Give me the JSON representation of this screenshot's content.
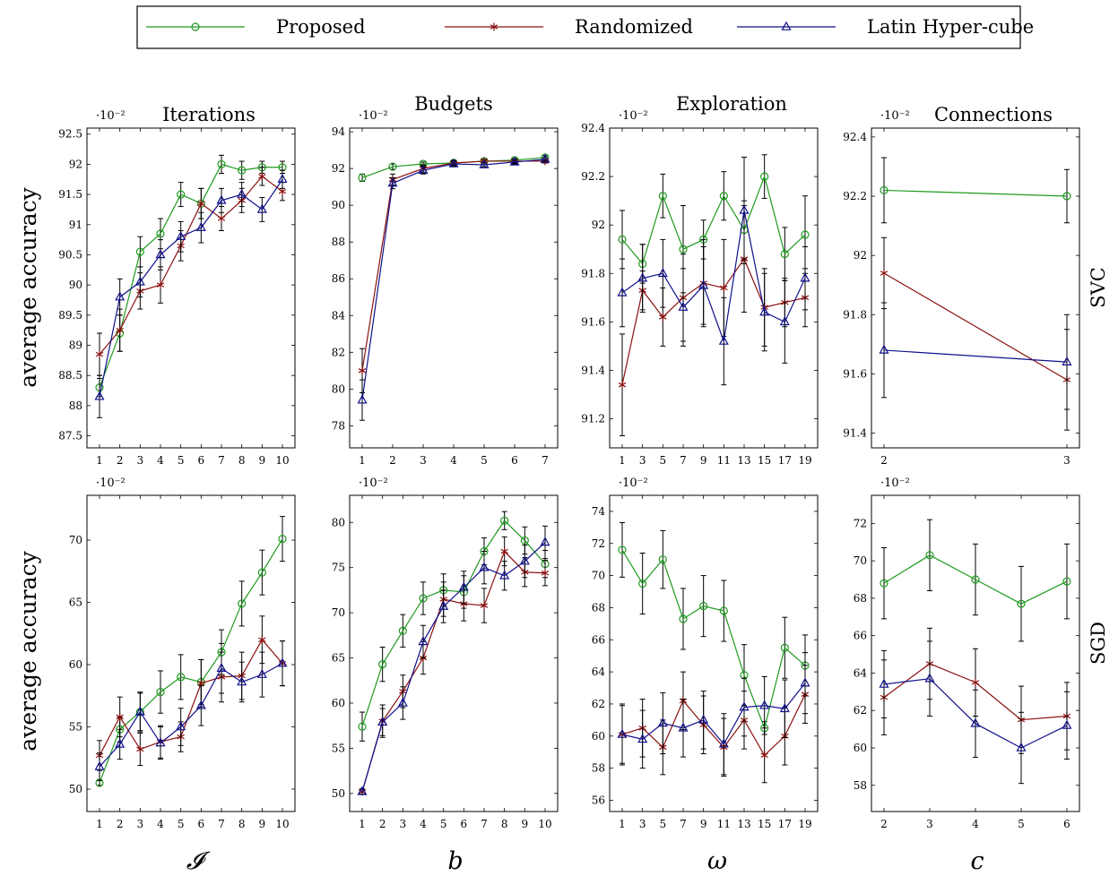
{
  "legend": {
    "entries": [
      {
        "name": "Proposed",
        "color": "#1f9a1f",
        "marker": "circle"
      },
      {
        "name": "Randomized",
        "color": "#8b1010",
        "marker": "star"
      },
      {
        "name": "Latin Hyper-cube",
        "color": "#10108b",
        "marker": "triangle"
      }
    ]
  },
  "row_labels": [
    "SVC",
    "SGD"
  ],
  "y_label": "average accuracy",
  "x_labels": [
    "𝓘",
    "b",
    "ω",
    "c"
  ],
  "chart_data": [
    {
      "type": "line",
      "title": "Iterations",
      "row": "SVC",
      "exponent": "·10⁻²",
      "x": [
        1,
        2,
        3,
        4,
        5,
        6,
        7,
        8,
        9,
        10
      ],
      "xticks": [
        "1",
        "2",
        "3",
        "4",
        "5",
        "6",
        "7",
        "8",
        "9",
        "10"
      ],
      "ylim": [
        87.3,
        92.6
      ],
      "yticks": [
        "87.5",
        "88",
        "88.5",
        "89",
        "89.5",
        "90",
        "90.5",
        "91",
        "91.5",
        "92",
        "92.5"
      ],
      "ytick_values": [
        87.5,
        88,
        88.5,
        89,
        89.5,
        90,
        90.5,
        91,
        91.5,
        92,
        92.5
      ],
      "series": [
        {
          "name": "Proposed",
          "values": [
            88.3,
            89.2,
            90.55,
            90.85,
            91.5,
            91.35,
            92.0,
            91.9,
            91.95,
            91.95
          ],
          "err": [
            0.15,
            0.3,
            0.25,
            0.25,
            0.2,
            0.25,
            0.15,
            0.15,
            0.1,
            0.1
          ]
        },
        {
          "name": "Randomized",
          "values": [
            88.85,
            89.25,
            89.9,
            90.0,
            90.65,
            91.35,
            91.1,
            91.4,
            91.8,
            91.55
          ],
          "err": [
            0.35,
            0.35,
            0.3,
            0.3,
            0.25,
            0.25,
            0.2,
            0.2,
            0.15,
            0.15
          ]
        },
        {
          "name": "Latin Hyper-cube",
          "values": [
            88.15,
            89.8,
            90.05,
            90.5,
            90.8,
            90.95,
            91.4,
            91.5,
            91.25,
            91.75
          ],
          "err": [
            0.35,
            0.3,
            0.25,
            0.25,
            0.25,
            0.25,
            0.2,
            0.2,
            0.2,
            0.15
          ]
        }
      ]
    },
    {
      "type": "line",
      "title": "Budgets",
      "row": "SVC",
      "exponent": "·10⁻²",
      "x": [
        1,
        2,
        3,
        4,
        5,
        6,
        7
      ],
      "xticks": [
        "1",
        "2",
        "3",
        "4",
        "5",
        "6",
        "7"
      ],
      "ylim": [
        76.8,
        94.2
      ],
      "yticks": [
        "78",
        "80",
        "82",
        "84",
        "86",
        "88",
        "90",
        "92",
        "94"
      ],
      "ytick_values": [
        78,
        80,
        82,
        84,
        86,
        88,
        90,
        92,
        94
      ],
      "series": [
        {
          "name": "Proposed",
          "values": [
            91.5,
            92.1,
            92.25,
            92.3,
            92.4,
            92.45,
            92.6
          ],
          "err": [
            0.2,
            0.15,
            0.1,
            0.1,
            0.1,
            0.1,
            0.1
          ]
        },
        {
          "name": "Randomized",
          "values": [
            81.0,
            91.4,
            92.0,
            92.3,
            92.4,
            92.4,
            92.4
          ],
          "err": [
            1.2,
            0.3,
            0.2,
            0.15,
            0.1,
            0.1,
            0.1
          ]
        },
        {
          "name": "Latin Hyper-cube",
          "values": [
            79.4,
            91.2,
            91.9,
            92.25,
            92.2,
            92.35,
            92.5
          ],
          "err": [
            1.1,
            0.3,
            0.2,
            0.15,
            0.1,
            0.1,
            0.1
          ]
        }
      ]
    },
    {
      "type": "line",
      "title": "Exploration",
      "row": "SVC",
      "exponent": "·10⁻²",
      "x": [
        1,
        3,
        5,
        7,
        9,
        11,
        13,
        15,
        17,
        19
      ],
      "xticks": [
        "1",
        "3",
        "5",
        "7",
        "9",
        "11",
        "13",
        "15",
        "17",
        "19"
      ],
      "ylim": [
        91.08,
        92.4
      ],
      "yticks": [
        "91.2",
        "91.4",
        "91.6",
        "91.8",
        "92",
        "92.2",
        "92.4"
      ],
      "ytick_values": [
        91.2,
        91.4,
        91.6,
        91.8,
        92,
        92.2,
        92.4
      ],
      "series": [
        {
          "name": "Proposed",
          "values": [
            91.94,
            91.84,
            92.12,
            91.9,
            91.94,
            92.12,
            91.98,
            92.2,
            91.88,
            91.96
          ],
          "err": [
            0.12,
            0.08,
            0.09,
            0.18,
            0.08,
            0.1,
            0.12,
            0.09,
            0.11,
            0.16
          ]
        },
        {
          "name": "Randomized",
          "values": [
            91.34,
            91.73,
            91.62,
            91.7,
            91.76,
            91.74,
            91.86,
            91.66,
            91.68,
            91.7
          ],
          "err": [
            0.21,
            0.08,
            0.12,
            0.18,
            0.18,
            0.2,
            0.22,
            0.16,
            0.1,
            0.12
          ]
        },
        {
          "name": "Latin Hyper-cube",
          "values": [
            91.72,
            91.78,
            91.8,
            91.66,
            91.75,
            91.52,
            92.06,
            91.64,
            91.6,
            91.78
          ],
          "err": [
            0.14,
            0.14,
            0.14,
            0.16,
            0.16,
            0.18,
            0.22,
            0.16,
            0.17,
            0.13
          ]
        }
      ]
    },
    {
      "type": "line",
      "title": "Connections",
      "row": "SVC",
      "exponent": "·10⁻²",
      "x": [
        2,
        3
      ],
      "xticks": [
        "2",
        "3"
      ],
      "ylim": [
        91.35,
        92.43
      ],
      "yticks": [
        "91.4",
        "91.6",
        "91.8",
        "92",
        "92.2",
        "92.4"
      ],
      "ytick_values": [
        91.4,
        91.6,
        91.8,
        92,
        92.2,
        92.4
      ],
      "series": [
        {
          "name": "Proposed",
          "values": [
            92.22,
            92.2
          ],
          "err": [
            0.11,
            0.09
          ]
        },
        {
          "name": "Randomized",
          "values": [
            91.94,
            91.58
          ],
          "err": [
            0.12,
            0.17
          ]
        },
        {
          "name": "Latin Hyper-cube",
          "values": [
            91.68,
            91.64
          ],
          "err": [
            0.16,
            0.16
          ]
        }
      ]
    },
    {
      "type": "line",
      "title": "",
      "row": "SGD",
      "exponent": "·10⁻²",
      "x": [
        1,
        2,
        3,
        4,
        5,
        6,
        7,
        8,
        9,
        10
      ],
      "xticks": [
        "1",
        "2",
        "3",
        "4",
        "5",
        "6",
        "7",
        "8",
        "9",
        "10"
      ],
      "ylim": [
        48.2,
        73.6
      ],
      "yticks": [
        "50",
        "55",
        "60",
        "65",
        "70"
      ],
      "ytick_values": [
        50,
        55,
        60,
        65,
        70
      ],
      "series": [
        {
          "name": "Proposed",
          "values": [
            50.5,
            54.8,
            56.2,
            57.8,
            59.0,
            58.6,
            61.0,
            64.9,
            67.4,
            70.1
          ],
          "err": [
            0.2,
            1.0,
            1.5,
            1.7,
            1.8,
            1.8,
            1.8,
            1.8,
            1.8,
            1.8
          ]
        },
        {
          "name": "Randomized",
          "values": [
            52.7,
            55.8,
            53.2,
            53.8,
            54.2,
            58.5,
            59.0,
            59.1,
            62.0,
            60.1
          ],
          "err": [
            1.2,
            1.6,
            1.3,
            1.3,
            1.2,
            1.9,
            2.0,
            1.9,
            1.9,
            1.8
          ]
        },
        {
          "name": "Latin Hyper-cube",
          "values": [
            51.8,
            53.6,
            56.2,
            53.7,
            55.0,
            56.7,
            59.7,
            58.6,
            59.2,
            60.1
          ],
          "err": [
            1.1,
            1.2,
            1.6,
            1.3,
            1.5,
            1.6,
            2.0,
            1.6,
            1.8,
            1.8
          ]
        }
      ]
    },
    {
      "type": "line",
      "title": "",
      "row": "SGD",
      "exponent": "·10⁻²",
      "x": [
        1,
        2,
        3,
        4,
        5,
        6,
        7,
        8,
        9,
        10
      ],
      "xticks": [
        "1",
        "2",
        "3",
        "4",
        "5",
        "6",
        "7",
        "8",
        "9",
        "10"
      ],
      "ylim": [
        48.0,
        83.0
      ],
      "yticks": [
        "50",
        "55",
        "60",
        "65",
        "70",
        "75",
        "80"
      ],
      "ytick_values": [
        50,
        55,
        60,
        65,
        70,
        75,
        80
      ],
      "series": [
        {
          "name": "Proposed",
          "values": [
            57.4,
            64.3,
            68.0,
            71.6,
            72.5,
            72.3,
            76.8,
            80.2,
            78.0,
            75.4
          ],
          "err": [
            1.6,
            1.9,
            1.8,
            1.8,
            1.8,
            1.8,
            1.5,
            1.0,
            1.5,
            1.5
          ]
        },
        {
          "name": "Randomized",
          "values": [
            50.2,
            58.0,
            61.3,
            65.0,
            71.5,
            71.0,
            70.8,
            76.8,
            74.5,
            74.4
          ],
          "err": [
            0.3,
            1.8,
            1.8,
            1.8,
            1.9,
            1.9,
            1.9,
            1.6,
            1.6,
            1.4
          ]
        },
        {
          "name": "Latin Hyper-cube",
          "values": [
            50.2,
            57.9,
            60.0,
            66.8,
            70.7,
            72.8,
            75.0,
            74.1,
            75.7,
            77.8
          ],
          "err": [
            0.3,
            1.5,
            1.8,
            1.8,
            1.8,
            1.8,
            1.8,
            1.6,
            1.8,
            1.8
          ]
        }
      ]
    },
    {
      "type": "line",
      "title": "",
      "row": "SGD",
      "exponent": "·10⁻²",
      "x": [
        1,
        3,
        5,
        7,
        9,
        11,
        13,
        15,
        17,
        19
      ],
      "xticks": [
        "1",
        "3",
        "5",
        "7",
        "9",
        "11",
        "13",
        "15",
        "17",
        "19"
      ],
      "ylim": [
        55.3,
        75.0
      ],
      "yticks": [
        "56",
        "58",
        "60",
        "62",
        "64",
        "66",
        "68",
        "70",
        "72",
        "74"
      ],
      "ytick_values": [
        56,
        58,
        60,
        62,
        64,
        66,
        68,
        70,
        72,
        74
      ],
      "series": [
        {
          "name": "Proposed",
          "values": [
            71.6,
            69.5,
            71.0,
            67.3,
            68.1,
            67.8,
            63.8,
            60.5,
            65.5,
            64.4
          ],
          "err": [
            1.7,
            1.9,
            1.8,
            1.9,
            1.9,
            1.9,
            1.9,
            0.4,
            1.9,
            1.9
          ]
        },
        {
          "name": "Randomized",
          "values": [
            60.1,
            60.5,
            59.3,
            62.2,
            60.7,
            59.3,
            61.0,
            58.8,
            60.0,
            62.6
          ],
          "err": [
            1.8,
            1.8,
            1.7,
            1.8,
            1.8,
            1.8,
            1.8,
            1.7,
            1.8,
            1.8
          ]
        },
        {
          "name": "Latin Hyper-cube",
          "values": [
            60.1,
            59.8,
            60.8,
            60.5,
            61.0,
            59.5,
            61.8,
            61.9,
            61.7,
            63.3
          ],
          "err": [
            1.9,
            1.8,
            1.9,
            1.8,
            1.8,
            1.9,
            1.8,
            1.8,
            1.8,
            1.9
          ]
        }
      ]
    },
    {
      "type": "line",
      "title": "",
      "row": "SGD",
      "exponent": "·10⁻²",
      "x": [
        2,
        3,
        4,
        5,
        6
      ],
      "xticks": [
        "2",
        "3",
        "4",
        "5",
        "6"
      ],
      "ylim": [
        56.6,
        73.5
      ],
      "yticks": [
        "58",
        "60",
        "62",
        "64",
        "66",
        "68",
        "70",
        "72"
      ],
      "ytick_values": [
        58,
        60,
        62,
        64,
        66,
        68,
        70,
        72
      ],
      "series": [
        {
          "name": "Proposed",
          "values": [
            68.8,
            70.3,
            69.0,
            67.7,
            68.9
          ],
          "err": [
            1.9,
            1.9,
            1.9,
            2.0,
            2.0
          ]
        },
        {
          "name": "Randomized",
          "values": [
            62.7,
            64.5,
            63.5,
            61.5,
            61.7
          ],
          "err": [
            2.0,
            1.9,
            1.8,
            1.8,
            1.8
          ]
        },
        {
          "name": "Latin Hyper-cube",
          "values": [
            63.4,
            63.7,
            61.3,
            60.0,
            61.2
          ],
          "err": [
            1.8,
            2.0,
            1.8,
            1.9,
            1.8
          ]
        }
      ]
    }
  ]
}
